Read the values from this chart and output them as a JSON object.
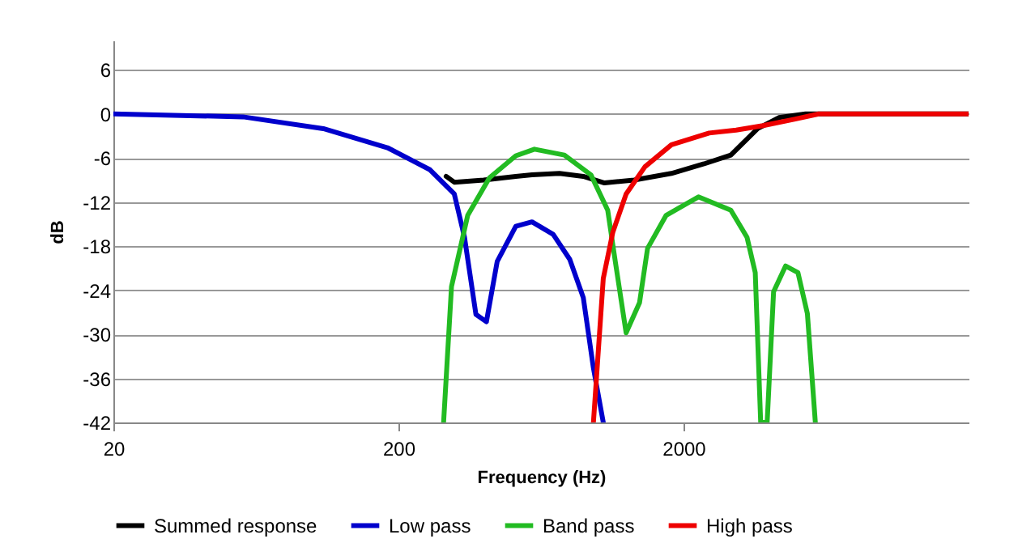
{
  "chart_data": {
    "type": "line",
    "xlabel": "Frequency (Hz)",
    "ylabel": "dB",
    "log": "x",
    "xlim": [
      20,
      20000
    ],
    "xticks": [
      20,
      200,
      2000
    ],
    "ylim": [
      -42,
      10
    ],
    "yticks": [
      -42,
      -36,
      -30,
      -24,
      -18,
      -12,
      -6,
      0,
      6
    ],
    "grid": "y",
    "legend": "bottom",
    "marker": "none",
    "line_style": "solid",
    "series": [
      {
        "name": "Summed response",
        "color": "#000000",
        "x": [
          294,
          314,
          398,
          516,
          588,
          734,
          890,
          1056,
          1342,
          1814,
          2360,
          2931,
          3640,
          4320,
          5360,
          20000
        ],
        "values": [
          -8.5,
          -9.3,
          -9,
          -8.5,
          -8.3,
          -8.1,
          -8.5,
          -9.4,
          -9,
          -8.1,
          -6.8,
          -5.6,
          -2,
          -0.5,
          0,
          0
        ]
      },
      {
        "name": "Low pass",
        "color": "#0000cc",
        "x": [
          20,
          57,
          109,
          183,
          258,
          314,
          341,
          374,
          407,
          444,
          516,
          588,
          698,
          798,
          890,
          966,
          1046
        ],
        "values": [
          0,
          -0.4,
          -2,
          -4.6,
          -7.6,
          -10.9,
          -16.8,
          -27.3,
          -28.3,
          -20.1,
          -15.3,
          -14.7,
          -16.4,
          -19.8,
          -25,
          -34.6,
          -42
        ]
      },
      {
        "name": "Band pass",
        "color": "#22bb22",
        "x": [
          288,
          307,
          350,
          417,
          516,
          600,
          764,
          947,
          1084,
          1157,
          1258,
          1402,
          1496,
          1738,
          2256,
          2931,
          3340,
          3570,
          3730,
          3930,
          4140,
          4560,
          5040,
          5440,
          5800
        ],
        "values": [
          -42,
          -23.5,
          -13.8,
          -8.7,
          -5.7,
          -4.8,
          -5.6,
          -8.3,
          -13.1,
          -20.5,
          -29.8,
          -25.7,
          -18.3,
          -13.8,
          -11.3,
          -13.1,
          -16.8,
          -21.6,
          -42,
          -42,
          -24.2,
          -20.7,
          -21.6,
          -27.2,
          -42
        ]
      },
      {
        "name": "High pass",
        "color": "#ee0000",
        "x": [
          966,
          1046,
          1130,
          1258,
          1464,
          1814,
          2460,
          3060,
          3800,
          4930,
          5960,
          20000
        ],
        "values": [
          -42,
          -22.4,
          -16.1,
          -10.9,
          -7.2,
          -4.2,
          -2.6,
          -2.2,
          -1.6,
          -0.7,
          0,
          0
        ]
      }
    ]
  }
}
